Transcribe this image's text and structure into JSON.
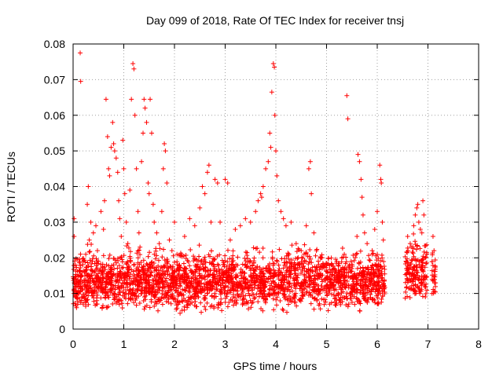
{
  "chart_data": {
    "type": "scatter",
    "title": "Day 099 of 2018, Rate Of TEC Index for receiver tnsj",
    "xlabel": "GPS time / hours",
    "ylabel": "ROTI / TECUs",
    "xlim": [
      0,
      8
    ],
    "ylim": [
      0,
      0.08
    ],
    "xticks": [
      "0",
      "1",
      "2",
      "3",
      "4",
      "5",
      "6",
      "7",
      "8"
    ],
    "yticks": [
      "0",
      "0.01",
      "0.02",
      "0.03",
      "0.04",
      "0.05",
      "0.06",
      "0.07",
      "0.08"
    ],
    "grid": true,
    "marker": "+",
    "color": "#ff0000",
    "series": [
      {
        "name": "ROTI",
        "points": [
          [
            0.02,
            0.031
          ],
          [
            0.02,
            0.026
          ],
          [
            0.03,
            0.014
          ],
          [
            0.05,
            0.018
          ],
          [
            0.06,
            0.009
          ],
          [
            0.08,
            0.012
          ],
          [
            0.14,
            0.0775
          ],
          [
            0.15,
            0.0695
          ],
          [
            0.18,
            0.011
          ],
          [
            0.2,
            0.007
          ],
          [
            0.22,
            0.016
          ],
          [
            0.25,
            0.021
          ],
          [
            0.28,
            0.035
          ],
          [
            0.3,
            0.04
          ],
          [
            0.32,
            0.025
          ],
          [
            0.35,
            0.03
          ],
          [
            0.38,
            0.019
          ],
          [
            0.4,
            0.027
          ],
          [
            0.45,
            0.029
          ],
          [
            0.48,
            0.022
          ],
          [
            0.5,
            0.019
          ],
          [
            0.55,
            0.033
          ],
          [
            0.6,
            0.028
          ],
          [
            0.62,
            0.036
          ],
          [
            0.65,
            0.0645
          ],
          [
            0.68,
            0.054
          ],
          [
            0.7,
            0.045
          ],
          [
            0.72,
            0.043
          ],
          [
            0.75,
            0.051
          ],
          [
            0.78,
            0.058
          ],
          [
            0.8,
            0.052
          ],
          [
            0.82,
            0.05
          ],
          [
            0.85,
            0.048
          ],
          [
            0.88,
            0.044
          ],
          [
            0.9,
            0.036
          ],
          [
            0.92,
            0.031
          ],
          [
            0.95,
            0.026
          ],
          [
            0.98,
            0.053
          ],
          [
            1.0,
            0.045
          ],
          [
            1.02,
            0.038
          ],
          [
            1.05,
            0.03
          ],
          [
            1.08,
            0.024
          ],
          [
            1.12,
            0.039
          ],
          [
            1.15,
            0.0645
          ],
          [
            1.18,
            0.0745
          ],
          [
            1.2,
            0.073
          ],
          [
            1.22,
            0.06
          ],
          [
            1.25,
            0.045
          ],
          [
            1.28,
            0.033
          ],
          [
            1.3,
            0.027
          ],
          [
            1.32,
            0.023
          ],
          [
            1.35,
            0.047
          ],
          [
            1.38,
            0.055
          ],
          [
            1.4,
            0.0645
          ],
          [
            1.42,
            0.062
          ],
          [
            1.45,
            0.058
          ],
          [
            1.48,
            0.041
          ],
          [
            1.5,
            0.038
          ],
          [
            1.52,
            0.0645
          ],
          [
            1.55,
            0.055
          ],
          [
            1.58,
            0.035
          ],
          [
            1.6,
            0.03
          ],
          [
            1.65,
            0.027
          ],
          [
            1.7,
            0.024
          ],
          [
            1.75,
            0.033
          ],
          [
            1.78,
            0.045
          ],
          [
            1.8,
            0.052
          ],
          [
            1.82,
            0.05
          ],
          [
            1.85,
            0.041
          ],
          [
            1.9,
            0.025
          ],
          [
            1.95,
            0.022
          ],
          [
            2.0,
            0.03
          ],
          [
            2.05,
            0.021
          ],
          [
            2.1,
            0.018
          ],
          [
            2.2,
            0.026
          ],
          [
            2.3,
            0.031
          ],
          [
            2.4,
            0.029
          ],
          [
            2.5,
            0.034
          ],
          [
            2.55,
            0.04
          ],
          [
            2.6,
            0.038
          ],
          [
            2.65,
            0.044
          ],
          [
            2.68,
            0.046
          ],
          [
            2.72,
            0.03
          ],
          [
            2.8,
            0.042
          ],
          [
            2.85,
            0.041
          ],
          [
            2.9,
            0.03
          ],
          [
            3.0,
            0.042
          ],
          [
            3.05,
            0.041
          ],
          [
            3.1,
            0.025
          ],
          [
            3.2,
            0.028
          ],
          [
            3.3,
            0.029
          ],
          [
            3.4,
            0.031
          ],
          [
            3.5,
            0.03
          ],
          [
            3.6,
            0.033
          ],
          [
            3.65,
            0.036
          ],
          [
            3.7,
            0.038
          ],
          [
            3.72,
            0.037
          ],
          [
            3.75,
            0.04
          ],
          [
            3.8,
            0.045
          ],
          [
            3.85,
            0.047
          ],
          [
            3.88,
            0.055
          ],
          [
            3.9,
            0.051
          ],
          [
            3.92,
            0.0665
          ],
          [
            3.95,
            0.0745
          ],
          [
            3.97,
            0.0735
          ],
          [
            3.98,
            0.06
          ],
          [
            4.0,
            0.05
          ],
          [
            4.02,
            0.043
          ],
          [
            4.05,
            0.036
          ],
          [
            4.1,
            0.033
          ],
          [
            4.15,
            0.031
          ],
          [
            4.2,
            0.029
          ],
          [
            4.3,
            0.03
          ],
          [
            4.4,
            0.024
          ],
          [
            4.5,
            0.022
          ],
          [
            4.6,
            0.029
          ],
          [
            4.65,
            0.045
          ],
          [
            4.68,
            0.047
          ],
          [
            4.7,
            0.038
          ],
          [
            4.75,
            0.027
          ],
          [
            4.8,
            0.022
          ],
          [
            4.9,
            0.02
          ],
          [
            5.0,
            0.018
          ],
          [
            5.1,
            0.016
          ],
          [
            5.2,
            0.019
          ],
          [
            5.3,
            0.02
          ],
          [
            5.35,
            0.021
          ],
          [
            5.4,
            0.0655
          ],
          [
            5.42,
            0.059
          ],
          [
            5.45,
            0.018
          ],
          [
            5.5,
            0.017
          ],
          [
            5.6,
            0.026
          ],
          [
            5.62,
            0.049
          ],
          [
            5.65,
            0.047
          ],
          [
            5.68,
            0.042
          ],
          [
            5.7,
            0.037
          ],
          [
            5.72,
            0.032
          ],
          [
            5.75,
            0.027
          ],
          [
            5.8,
            0.024
          ],
          [
            5.9,
            0.021
          ],
          [
            5.95,
            0.028
          ],
          [
            6.0,
            0.033
          ],
          [
            6.05,
            0.046
          ],
          [
            6.07,
            0.042
          ],
          [
            6.08,
            0.041
          ],
          [
            6.1,
            0.03
          ],
          [
            6.12,
            0.025
          ],
          [
            6.6,
            0.026
          ],
          [
            6.65,
            0.024
          ],
          [
            6.7,
            0.023
          ],
          [
            6.72,
            0.029
          ],
          [
            6.75,
            0.032
          ],
          [
            6.78,
            0.034
          ],
          [
            6.8,
            0.035
          ],
          [
            6.82,
            0.03
          ],
          [
            6.85,
            0.028
          ],
          [
            6.88,
            0.027
          ],
          [
            6.9,
            0.036
          ],
          [
            6.92,
            0.032
          ],
          [
            6.95,
            0.02
          ],
          [
            7.1,
            0.026
          ],
          [
            7.12,
            0.022
          ]
        ],
        "dense_bands": [
          {
            "x_range": [
              0.0,
              6.15
            ],
            "y_range": [
              0.004,
              0.025
            ]
          },
          {
            "x_range": [
              6.55,
              6.98
            ],
            "y_range": [
              0.006,
              0.028
            ]
          },
          {
            "x_range": [
              7.08,
              7.15
            ],
            "y_range": [
              0.006,
              0.026
            ]
          }
        ]
      }
    ]
  }
}
